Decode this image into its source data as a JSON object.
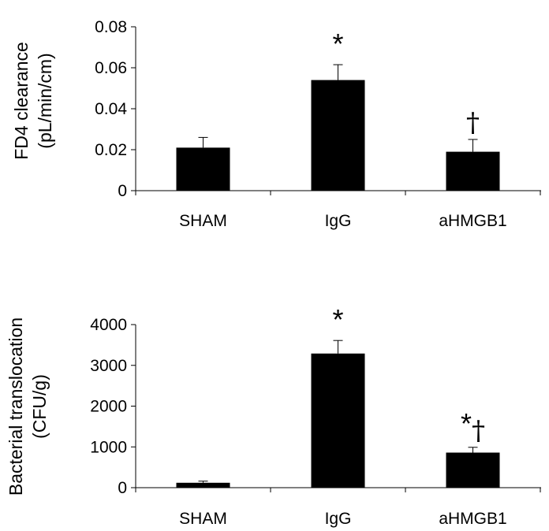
{
  "chart_data": [
    {
      "type": "bar",
      "categories": [
        "SHAM",
        "IgG",
        "aHMGB1"
      ],
      "values": [
        0.021,
        0.054,
        0.019
      ],
      "errors": [
        0.005,
        0.0075,
        0.006
      ],
      "ylim": [
        0,
        0.08
      ],
      "yticks": [
        "0",
        "0.02",
        "0.04",
        "0.06",
        "0.08"
      ],
      "ylabel_lines": [
        "FD4 clearance",
        "(pL/min/cm)"
      ],
      "xlabel": "",
      "bar_color": "#000000",
      "annotations": [
        "",
        "*",
        "†"
      ]
    },
    {
      "type": "bar",
      "categories": [
        "SHAM",
        "IgG",
        "aHMGB1"
      ],
      "values": [
        120,
        3290,
        860
      ],
      "errors": [
        40,
        320,
        130
      ],
      "ylim": [
        0,
        4000
      ],
      "yticks": [
        "0",
        "1000",
        "2000",
        "3000",
        "4000"
      ],
      "ylabel_lines": [
        "Bacterial translocation",
        "(CFU/g)"
      ],
      "xlabel": "",
      "bar_color": "#000000",
      "annotations": [
        "",
        "*",
        "*†"
      ]
    }
  ]
}
